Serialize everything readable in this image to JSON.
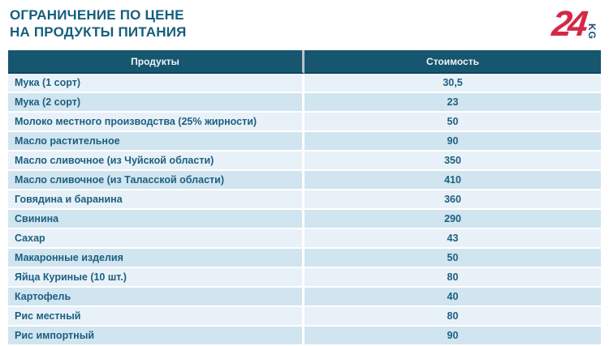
{
  "header": {
    "title_line1": "ОГРАНИЧЕНИЕ ПО ЦЕНЕ",
    "title_line2": "НА ПРОДУКТЫ ПИТАНИЯ",
    "logo": {
      "number": "24",
      "suffix": "KG"
    }
  },
  "table": {
    "columns": [
      "Продукты",
      "Стоимость"
    ],
    "rows": [
      {
        "product": "Мука (1 сорт)",
        "price": "30,5"
      },
      {
        "product": "Мука (2 сорт)",
        "price": "23"
      },
      {
        "product": "Молоко местного производства (25% жирности)",
        "price": "50"
      },
      {
        "product": "Масло растительное",
        "price": "90"
      },
      {
        "product": "Масло сливочное (из Чуйской области)",
        "price": "350"
      },
      {
        "product": "Масло сливочное (из Таласской области)",
        "price": "410"
      },
      {
        "product": "Говядина и баранина",
        "price": "360"
      },
      {
        "product": "Свинина",
        "price": "290"
      },
      {
        "product": "Сахар",
        "price": "43"
      },
      {
        "product": "Макаронные изделия",
        "price": "50"
      },
      {
        "product": "Яйца Куриные (10 шт.)",
        "price": "80"
      },
      {
        "product": "Картофель",
        "price": "40"
      },
      {
        "product": "Рис местный",
        "price": "80"
      },
      {
        "product": "Рис импортный",
        "price": "90"
      }
    ]
  },
  "colors": {
    "header_teal": "#16566F",
    "title_text": "#155E7E",
    "cell_text": "#1D5F80",
    "row_light": "#E8F1F8",
    "row_dark": "#D0E5F0",
    "logo_red": "#D22A48",
    "logo_blue": "#1C4E74"
  },
  "chart_data": {
    "type": "table",
    "title": "ОГРАНИЧЕНИЕ ПО ЦЕНЕ НА ПРОДУКТЫ ПИТАНИЯ",
    "columns": [
      "Продукты",
      "Стоимость"
    ],
    "categories": [
      "Мука (1 сорт)",
      "Мука (2 сорт)",
      "Молоко местного производства (25% жирности)",
      "Масло растительное",
      "Масло сливочное (из Чуйской области)",
      "Масло сливочное (из Таласской области)",
      "Говядина и баранина",
      "Свинина",
      "Сахар",
      "Макаронные изделия",
      "Яйца Куриные (10 шт.)",
      "Картофель",
      "Рис местный",
      "Рис импортный"
    ],
    "values": [
      30.5,
      23,
      50,
      90,
      350,
      410,
      360,
      290,
      43,
      50,
      80,
      40,
      80,
      90
    ]
  }
}
